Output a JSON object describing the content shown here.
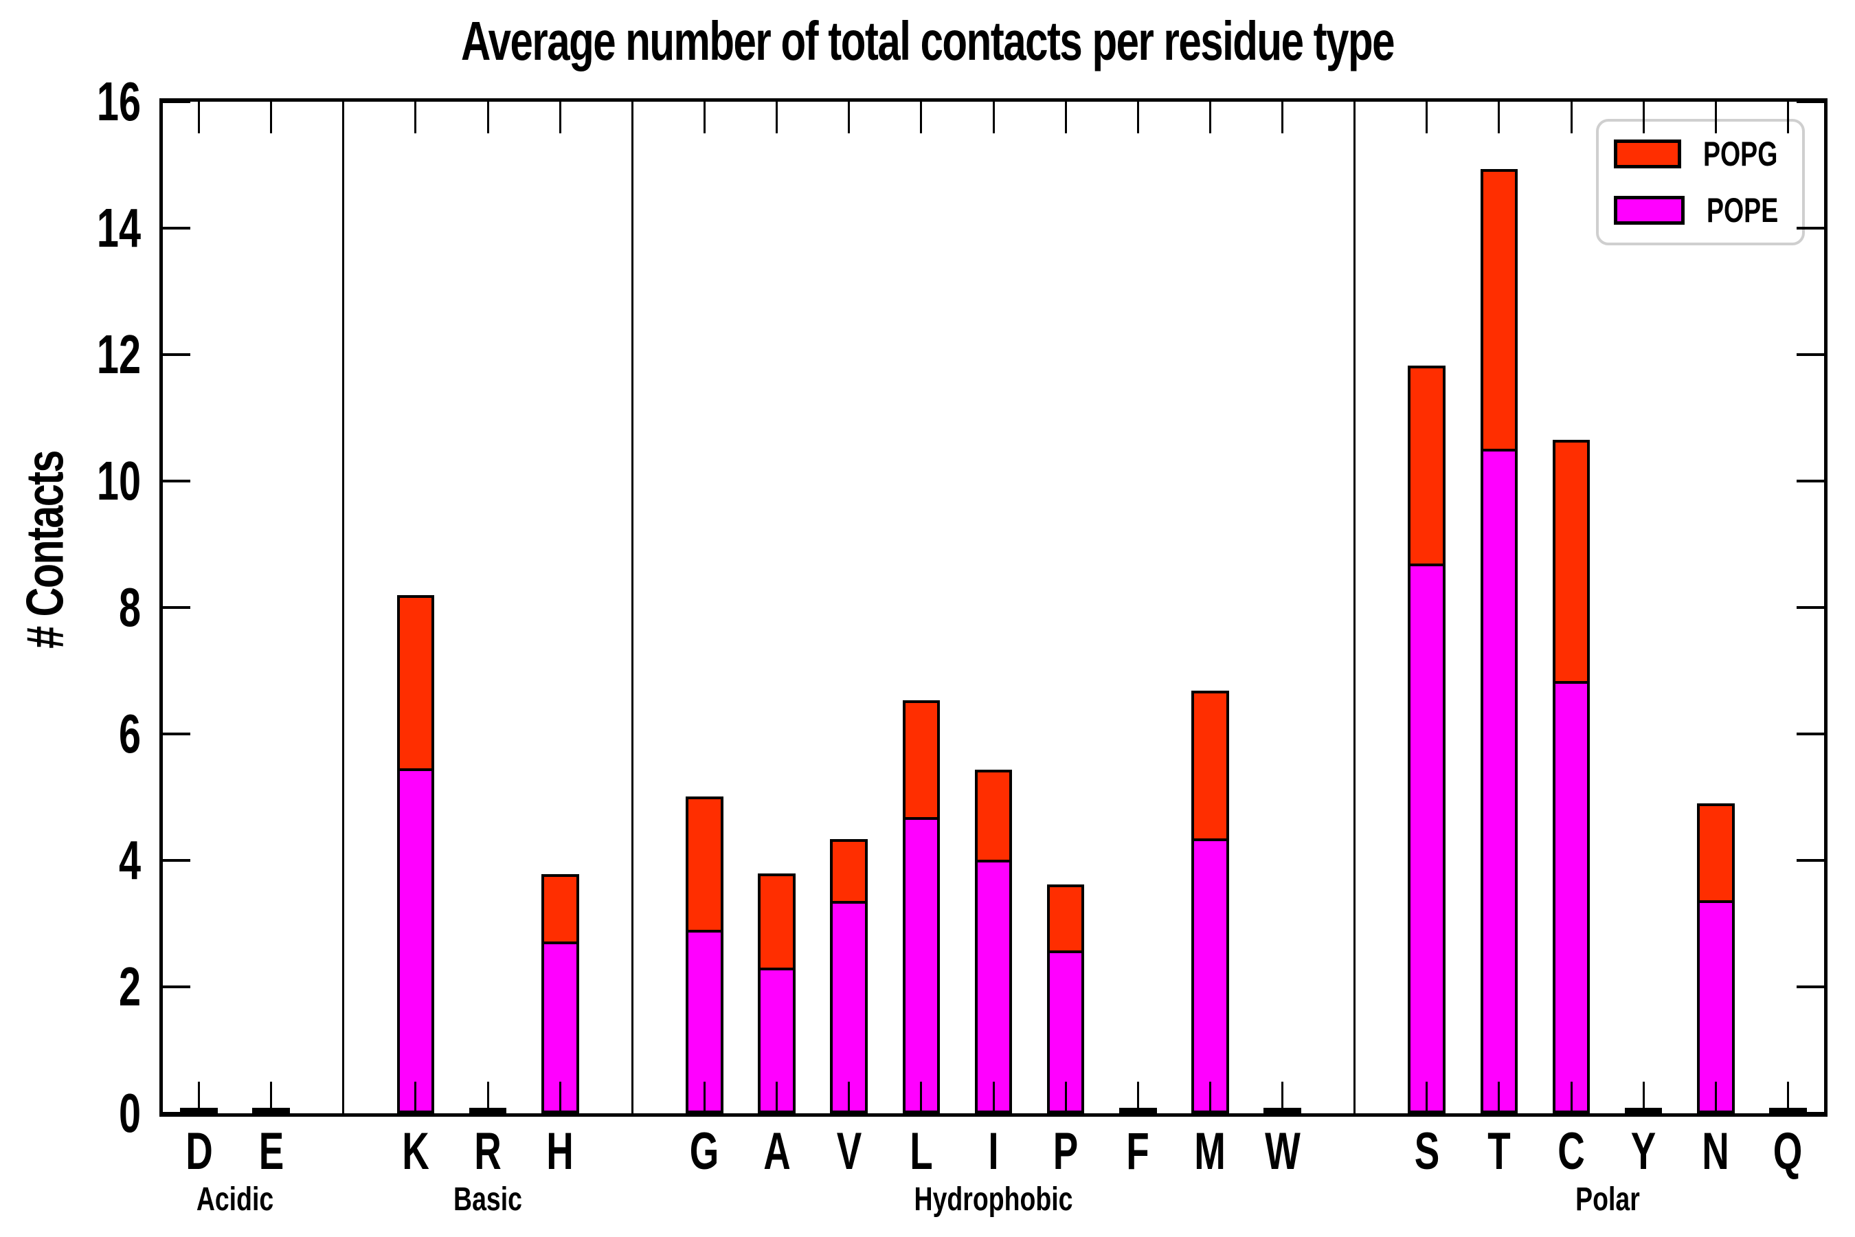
{
  "figure": {
    "title": "Average number of total contacts per residue type"
  },
  "chart_data": {
    "type": "bar",
    "stacked": true,
    "title": "Average number of total contacts per residue type",
    "xlabel": "",
    "ylabel": "# Contacts",
    "ylim": [
      0,
      16
    ],
    "y_tick_labels": [
      "0",
      "2",
      "4",
      "6",
      "8",
      "10",
      "12",
      "14",
      "16"
    ],
    "grid": false,
    "categories": [
      "D",
      "E",
      "K",
      "R",
      "H",
      "G",
      "A",
      "V",
      "L",
      "I",
      "P",
      "F",
      "M",
      "W",
      "S",
      "T",
      "C",
      "Y",
      "N",
      "Q"
    ],
    "residue_groups": [
      {
        "label": "Acidic",
        "residues": [
          "D",
          "E"
        ]
      },
      {
        "label": "Basic",
        "residues": [
          "K",
          "R",
          "H"
        ]
      },
      {
        "label": "Hydrophobic",
        "residues": [
          "G",
          "A",
          "V",
          "L",
          "I",
          "P",
          "F",
          "M",
          "W"
        ]
      },
      {
        "label": "Polar",
        "residues": [
          "S",
          "T",
          "C",
          "Y",
          "N",
          "Q"
        ]
      }
    ],
    "series": [
      {
        "name": "POPE",
        "color": "#ff00ff",
        "values": [
          0.02,
          0.02,
          5.43,
          0.02,
          2.69,
          2.86,
          2.27,
          3.34,
          4.66,
          3.99,
          2.55,
          0.02,
          4.32,
          0.02,
          8.67,
          10.49,
          6.81,
          0.02,
          3.34,
          0.02
        ]
      },
      {
        "name": "POPG",
        "color": "#ff2e00",
        "values": [
          0.02,
          0.02,
          2.77,
          0.02,
          1.09,
          2.15,
          1.52,
          1.0,
          1.87,
          1.44,
          1.07,
          0.02,
          2.37,
          0.02,
          3.16,
          4.45,
          3.84,
          0.02,
          1.56,
          0.02
        ]
      }
    ],
    "legend": {
      "position": "upper-right",
      "entries": [
        {
          "label": "POPG",
          "color": "#ff2e00"
        },
        {
          "label": "POPE",
          "color": "#ff00ff"
        }
      ]
    }
  }
}
